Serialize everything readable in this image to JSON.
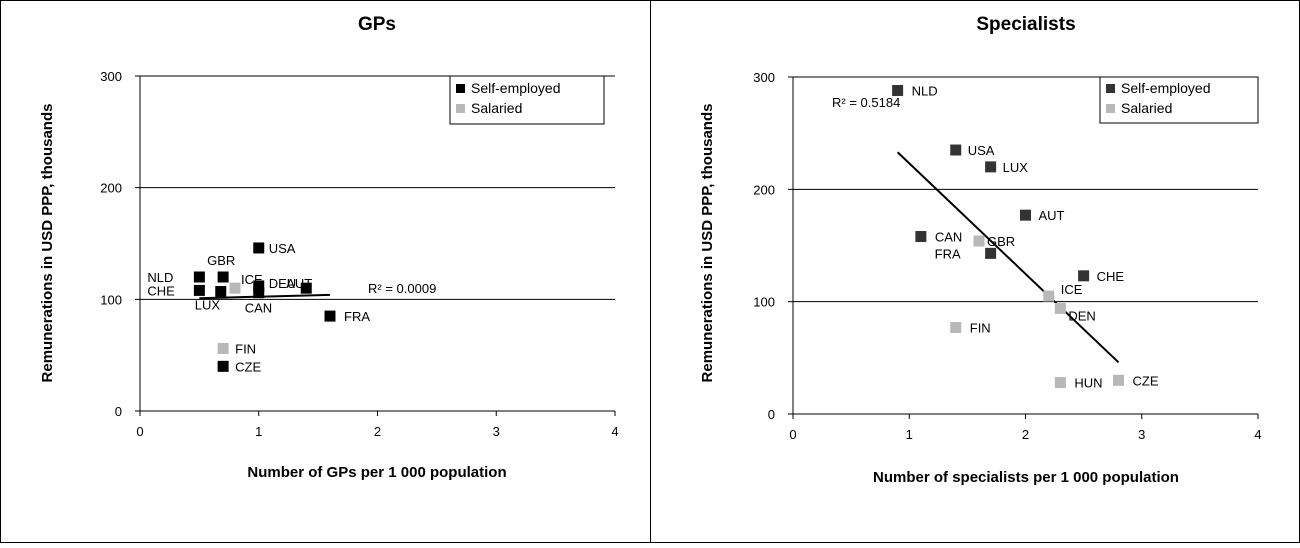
{
  "colors": {
    "self_employed": "#333333",
    "salaried": "#b8b8b8",
    "gps_self_employed": "#000000"
  },
  "chart_data": [
    {
      "type": "scatter",
      "title": "GPs",
      "xlabel": "Number of GPs per 1 000 population",
      "ylabel": "Remunerations in USD PPP, thousands",
      "xlim": [
        0,
        4
      ],
      "ylim": [
        0,
        300
      ],
      "xticks": [
        "0",
        "1",
        "2",
        "3",
        "4"
      ],
      "yticks": [
        "0",
        "100",
        "200",
        "300"
      ],
      "grid": "horizontal",
      "legend_position": "top-right",
      "legend": [
        "Self-employed",
        "Salaried"
      ],
      "r2_label": "R² = 0.0009",
      "trendline": {
        "x": [
          0.5,
          1.6
        ],
        "y": [
          101,
          104
        ]
      },
      "points": [
        {
          "label": "NLD",
          "x": 0.5,
          "y": 120,
          "series": "Self-employed"
        },
        {
          "label": "CHE",
          "x": 0.5,
          "y": 108,
          "series": "Self-employed"
        },
        {
          "label": "GBR",
          "x": 0.7,
          "y": 120,
          "series": "Self-employed"
        },
        {
          "label": "ICE",
          "x": 0.8,
          "y": 110,
          "series": "Salaried"
        },
        {
          "label": "LUX",
          "x": 0.68,
          "y": 107,
          "series": "Self-employed"
        },
        {
          "label": "USA",
          "x": 1.0,
          "y": 146,
          "series": "Self-employed"
        },
        {
          "label": "DEU",
          "x": 1.0,
          "y": 112,
          "series": "Self-employed"
        },
        {
          "label": "CAN",
          "x": 1.0,
          "y": 106,
          "series": "Self-employed"
        },
        {
          "label": "AUT",
          "x": 1.4,
          "y": 110,
          "series": "Self-employed"
        },
        {
          "label": "FRA",
          "x": 1.6,
          "y": 85,
          "series": "Self-employed"
        },
        {
          "label": "FIN",
          "x": 0.7,
          "y": 56,
          "series": "Salaried"
        },
        {
          "label": "CZE",
          "x": 0.7,
          "y": 40,
          "series": "Self-employed"
        }
      ]
    },
    {
      "type": "scatter",
      "title": "Specialists",
      "xlabel": "Number of specialists per 1 000 population",
      "ylabel": "Remunerations in USD PPP, thousands",
      "xlim": [
        0,
        4
      ],
      "ylim": [
        0,
        300
      ],
      "xticks": [
        "0",
        "1",
        "2",
        "3",
        "4"
      ],
      "yticks": [
        "0",
        "100",
        "200",
        "300"
      ],
      "grid": "horizontal",
      "legend_position": "top-right",
      "legend": [
        "Self-employed",
        "Salaried"
      ],
      "r2_label": "R² = 0.5184",
      "trendline": {
        "x": [
          0.9,
          2.8
        ],
        "y": [
          233,
          46
        ]
      },
      "points": [
        {
          "label": "NLD",
          "x": 0.9,
          "y": 288,
          "series": "Self-employed"
        },
        {
          "label": "USA",
          "x": 1.4,
          "y": 235,
          "series": "Self-employed"
        },
        {
          "label": "LUX",
          "x": 1.7,
          "y": 220,
          "series": "Self-employed"
        },
        {
          "label": "AUT",
          "x": 2.0,
          "y": 177,
          "series": "Self-employed"
        },
        {
          "label": "CAN",
          "x": 1.1,
          "y": 158,
          "series": "Self-employed"
        },
        {
          "label": "GBR",
          "x": 1.6,
          "y": 154,
          "series": "Salaried"
        },
        {
          "label": "FRA",
          "x": 1.7,
          "y": 143,
          "series": "Self-employed"
        },
        {
          "label": "CHE",
          "x": 2.5,
          "y": 123,
          "series": "Self-employed"
        },
        {
          "label": "ICE",
          "x": 2.2,
          "y": 105,
          "series": "Salaried"
        },
        {
          "label": "DEN",
          "x": 2.3,
          "y": 94,
          "series": "Salaried"
        },
        {
          "label": "FIN",
          "x": 1.4,
          "y": 77,
          "series": "Salaried"
        },
        {
          "label": "HUN",
          "x": 2.3,
          "y": 28,
          "series": "Salaried"
        },
        {
          "label": "CZE",
          "x": 2.8,
          "y": 30,
          "series": "Salaried"
        }
      ]
    }
  ]
}
